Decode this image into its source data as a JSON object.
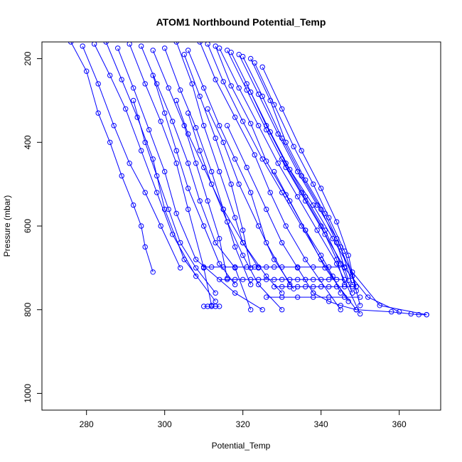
{
  "chart_data": {
    "type": "line",
    "title": "ATOM1 Northbound Potential_Temp",
    "xlabel": "Potential_Temp",
    "ylabel": "Pressure (mbar)",
    "xlim": [
      268.6,
      370.6
    ],
    "ylim": [
      1040,
      160
    ],
    "y_reversed": true,
    "x_ticks": [
      280,
      300,
      320,
      340,
      360
    ],
    "y_ticks": [
      200,
      400,
      600,
      800,
      1000
    ],
    "grid": false,
    "marker": "open-circle",
    "color": "#0000ff",
    "series": [
      {
        "x": [
          276,
          280,
          283,
          286,
          289,
          292,
          294,
          295,
          297
        ],
        "y": [
          160,
          230,
          330,
          400,
          480,
          550,
          600,
          650,
          710
        ]
      },
      {
        "x": [
          279,
          283,
          287,
          291,
          295,
          299,
          304
        ],
        "y": [
          170,
          260,
          360,
          450,
          520,
          600,
          700
        ]
      },
      {
        "x": [
          282,
          286,
          290,
          294,
          298,
          302,
          308
        ],
        "y": [
          165,
          240,
          320,
          420,
          520,
          620,
          720
        ]
      },
      {
        "x": [
          285,
          289,
          293,
          297,
          300,
          305,
          313
        ],
        "y": [
          160,
          250,
          340,
          440,
          560,
          680,
          780
        ]
      },
      {
        "x": [
          288,
          292,
          296,
          300,
          303,
          308,
          318,
          325
        ],
        "y": [
          175,
          270,
          370,
          470,
          570,
          680,
          760,
          800
        ]
      },
      {
        "x": [
          291,
          295,
          299,
          303,
          306,
          310,
          312
        ],
        "y": [
          165,
          260,
          350,
          450,
          560,
          700,
          790
        ]
      },
      {
        "x": [
          294,
          298,
          302,
          306,
          309,
          313,
          318,
          322
        ],
        "y": [
          170,
          260,
          350,
          450,
          540,
          640,
          700,
          800
        ]
      },
      {
        "x": [
          297,
          301,
          305,
          308,
          311,
          314,
          316
        ],
        "y": [
          180,
          270,
          360,
          450,
          540,
          630,
          725
        ]
      },
      {
        "x": [
          300,
          304,
          308,
          312,
          315,
          318,
          322
        ],
        "y": [
          175,
          275,
          365,
          470,
          560,
          650,
          740
        ]
      },
      {
        "x": [
          303,
          307,
          310,
          314,
          318,
          320,
          324
        ],
        "y": [
          160,
          260,
          360,
          470,
          580,
          640,
          700
        ]
      },
      {
        "x": [
          306,
          310,
          314,
          318,
          322,
          326,
          332
        ],
        "y": [
          180,
          270,
          360,
          440,
          520,
          640,
          740
        ]
      },
      {
        "x": [
          305,
          309,
          313,
          317,
          320,
          322
        ],
        "y": [
          190,
          290,
          390,
          500,
          610,
          700
        ]
      },
      {
        "x": [
          309,
          313,
          318,
          323,
          327,
          331,
          336,
          345
        ],
        "y": [
          160,
          250,
          340,
          430,
          520,
          600,
          680,
          800
        ]
      },
      {
        "x": [
          311,
          315,
          320,
          325,
          330,
          335,
          340,
          347
        ],
        "y": [
          165,
          255,
          350,
          440,
          520,
          600,
          680,
          780
        ]
      },
      {
        "x": [
          313,
          317,
          322,
          326,
          331,
          336,
          341,
          349
        ],
        "y": [
          170,
          265,
          355,
          445,
          525,
          610,
          700,
          800
        ]
      },
      {
        "x": [
          314,
          319,
          324,
          329,
          334,
          339,
          344,
          350
        ],
        "y": [
          175,
          270,
          360,
          450,
          530,
          610,
          690,
          810
        ]
      },
      {
        "x": [
          316,
          321,
          326,
          331,
          336,
          341,
          346,
          352,
          360
        ],
        "y": [
          180,
          275,
          370,
          460,
          540,
          620,
          700,
          770,
          805
        ]
      },
      {
        "x": [
          317,
          322,
          327,
          332,
          338,
          343,
          348,
          355,
          367
        ],
        "y": [
          185,
          280,
          375,
          465,
          550,
          630,
          710,
          790,
          812
        ]
      },
      {
        "x": [
          319,
          324,
          329,
          334,
          339,
          344,
          348,
          350
        ],
        "y": [
          190,
          285,
          380,
          470,
          550,
          630,
          720,
          790
        ]
      },
      {
        "x": [
          320,
          325,
          330,
          335,
          340,
          344,
          347
        ],
        "y": [
          195,
          290,
          390,
          480,
          560,
          640,
          730
        ]
      },
      {
        "x": [
          322,
          327,
          331,
          336,
          341,
          345,
          348
        ],
        "y": [
          200,
          300,
          400,
          490,
          570,
          650,
          740
        ]
      },
      {
        "x": [
          323,
          328,
          333,
          338,
          342,
          346,
          349
        ],
        "y": [
          210,
          310,
          410,
          500,
          580,
          660,
          745
        ]
      },
      {
        "x": [
          325,
          330,
          335,
          340,
          344,
          347,
          349
        ],
        "y": [
          220,
          320,
          420,
          510,
          590,
          670,
          755
        ]
      },
      {
        "x": [
          321,
          326,
          331,
          336,
          341,
          345,
          348
        ],
        "y": [
          260,
          360,
          450,
          530,
          610,
          690,
          760
        ]
      },
      {
        "x": [
          311,
          315,
          319,
          324,
          328,
          333
        ],
        "y": [
          320,
          400,
          500,
          600,
          680,
          750
        ]
      },
      {
        "x": [
          303,
          306,
          310,
          315,
          320,
          326,
          330
        ],
        "y": [
          300,
          380,
          460,
          560,
          640,
          720,
          760
        ]
      },
      {
        "x": [
          316,
          321,
          326,
          330,
          334,
          338
        ],
        "y": [
          360,
          460,
          560,
          640,
          700,
          760
        ]
      },
      {
        "x": [
          330,
          335,
          340,
          344,
          346
        ],
        "y": [
          440,
          520,
          600,
          680,
          740
        ]
      },
      {
        "x": [
          310,
          312,
          315,
          318,
          321,
          323,
          324,
          326,
          328,
          330,
          334,
          338,
          342,
          346
        ],
        "y": [
          698,
          698,
          698,
          698,
          698,
          698,
          698,
          698,
          698,
          698,
          698,
          698,
          698,
          698
        ]
      },
      {
        "x": [
          314,
          316,
          318,
          320,
          322,
          324,
          326,
          328,
          330,
          332,
          334,
          336,
          338,
          340,
          342,
          344,
          346
        ],
        "y": [
          728,
          728,
          728,
          728,
          728,
          728,
          728,
          728,
          728,
          728,
          728,
          728,
          728,
          728,
          728,
          728,
          728
        ]
      },
      {
        "x": [
          310,
          311,
          312,
          313,
          314
        ],
        "y": [
          792,
          792,
          792,
          792,
          792
        ]
      },
      {
        "x": [
          328,
          330,
          332,
          334,
          336,
          338,
          340,
          342,
          344,
          346,
          348
        ],
        "y": [
          745,
          745,
          745,
          745,
          745,
          745,
          745,
          745,
          745,
          745,
          745
        ]
      },
      {
        "x": [
          326,
          330,
          334,
          338,
          342,
          346,
          350
        ],
        "y": [
          770,
          770,
          770,
          770,
          770,
          770,
          770
        ]
      },
      {
        "x": [
          338,
          342,
          345,
          349,
          358,
          363,
          365,
          367
        ],
        "y": [
          760,
          780,
          790,
          800,
          805,
          810,
          812,
          812
        ]
      },
      {
        "x": [
          292,
          295,
          298,
          301,
          304,
          308,
          313
        ],
        "y": [
          300,
          400,
          480,
          560,
          640,
          700,
          760
        ]
      },
      {
        "x": [
          297,
          300,
          303,
          306,
          310,
          314,
          318
        ],
        "y": [
          240,
          330,
          420,
          510,
          600,
          690,
          740
        ]
      },
      {
        "x": [
          306,
          309,
          312,
          316,
          320,
          324,
          330
        ],
        "y": [
          330,
          420,
          500,
          590,
          670,
          740,
          800
        ]
      },
      {
        "x": [
          328,
          332,
          336,
          340,
          343,
          345
        ],
        "y": [
          470,
          540,
          610,
          670,
          720,
          760
        ]
      }
    ]
  }
}
